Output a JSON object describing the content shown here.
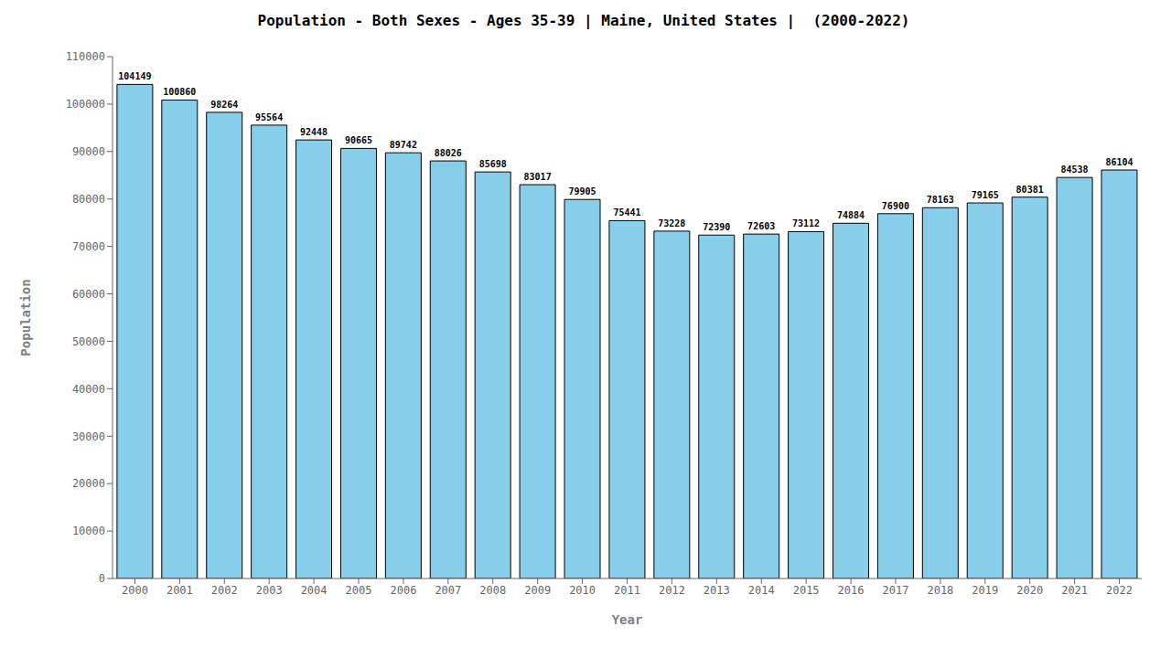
{
  "chart_data": {
    "type": "bar",
    "title": "Population - Both Sexes - Ages 35-39 | Maine, United States |  (2000-2022)",
    "xlabel": "Year",
    "ylabel": "Population",
    "categories": [
      "2000",
      "2001",
      "2002",
      "2003",
      "2004",
      "2005",
      "2006",
      "2007",
      "2008",
      "2009",
      "2010",
      "2011",
      "2012",
      "2013",
      "2014",
      "2015",
      "2016",
      "2017",
      "2018",
      "2019",
      "2020",
      "2021",
      "2022"
    ],
    "values": [
      104149,
      100860,
      98264,
      95564,
      92448,
      90665,
      89742,
      88026,
      85698,
      83017,
      79905,
      75441,
      73228,
      72390,
      72603,
      73112,
      74884,
      76900,
      78163,
      79165,
      80381,
      84538,
      86104
    ],
    "color": "#87CEEB",
    "ylim": [
      0,
      110000
    ],
    "yticks": [
      0,
      10000,
      20000,
      30000,
      40000,
      50000,
      60000,
      70000,
      80000,
      90000,
      100000,
      110000
    ],
    "grid": false,
    "data_labels": true
  }
}
